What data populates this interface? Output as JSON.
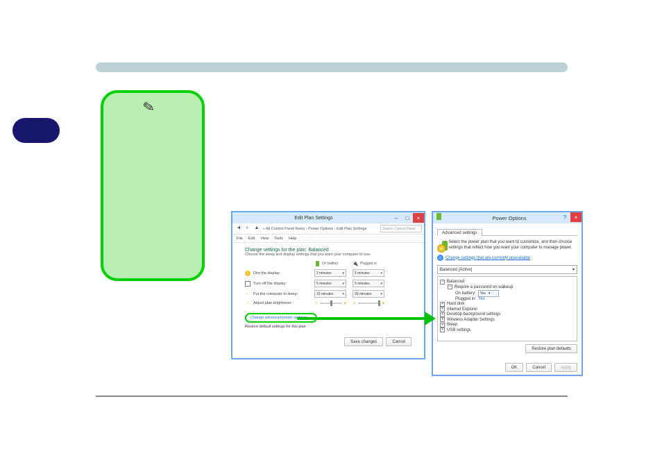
{
  "colors": {
    "topbar": "#bcd1d6",
    "side_pill": "#17176e",
    "green_box_bg": "#b7f0b0",
    "green_box_border": "#00d000",
    "arrow": "#00c200",
    "win_border": "#6aa8e8",
    "win_titlebar": "#d6e9fb",
    "close_btn": "#e04040",
    "link_blue": "#1a6ed8",
    "heading_green": "#146a3a"
  },
  "edit_plan": {
    "window_title": "Edit Plan Settings",
    "breadcrumb": "« All Control Panel Items  ›  Power Options  ›  Edit Plan Settings",
    "search_placeholder": "Search Control Panel",
    "menu": [
      "File",
      "Edit",
      "View",
      "Tools",
      "Help"
    ],
    "heading": "Change settings for the plan: Balanced",
    "sub": "Choose the sleep and display settings that you want your computer to use.",
    "col_battery": "On battery",
    "col_plugged": "Plugged in",
    "rows": {
      "dim": {
        "label": "Dim the display:",
        "battery": "2 minutes",
        "plugged": "5 minutes"
      },
      "turnoff": {
        "label": "Turn off the display:",
        "battery": "5 minutes",
        "plugged": "5 minutes"
      },
      "sleep": {
        "label": "Put the computer to sleep:",
        "battery": "15 minutes",
        "plugged": "30 minutes"
      },
      "bright": {
        "label": "Adjust plan brightness:"
      }
    },
    "brightness_slider": {
      "battery_pct": 55,
      "plugged_pct": 100
    },
    "link_advanced": "Change advanced power settings",
    "link_restore": "Restore default settings for this plan",
    "btn_save": "Save changes",
    "btn_cancel": "Cancel"
  },
  "power_options": {
    "window_title": "Power Options",
    "tab": "Advanced settings",
    "intro": "Select the power plan that you want to customize, and then choose settings that reflect how you want your computer to manage power.",
    "link_unavailable": "Change settings that are currently unavailable",
    "select_value": "Balanced [Active]",
    "tree": {
      "root": "Balanced",
      "pwd": {
        "label": "Require a password on wakeup",
        "battery_label": "On battery:",
        "battery_value": "Yes",
        "plugged_label": "Plugged in:",
        "plugged_value": "Yes"
      },
      "items": [
        "Hard disk",
        "Internet Explorer",
        "Desktop background settings",
        "Wireless Adapter Settings",
        "Sleep",
        "USB settings"
      ]
    },
    "btn_restore": "Restore plan defaults",
    "btn_ok": "OK",
    "btn_cancel": "Cancel",
    "btn_apply": "Apply"
  }
}
